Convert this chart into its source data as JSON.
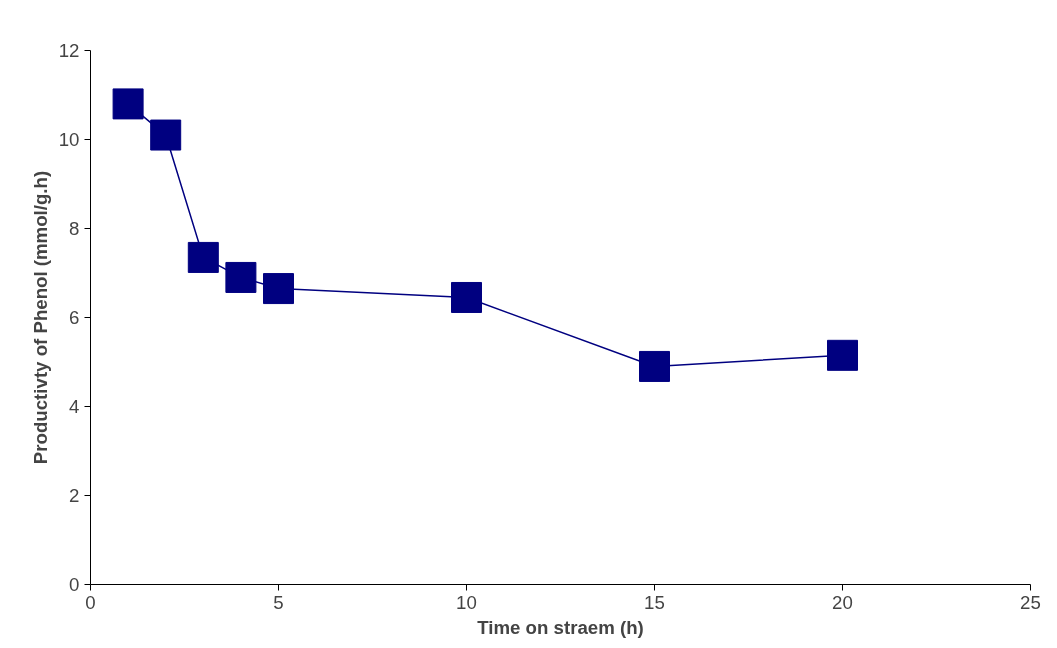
{
  "chart_data": {
    "type": "line",
    "xlabel": "Time on straem (h)",
    "ylabel": "Productivty of Phenol (mmol/g.h)",
    "x": [
      1,
      2,
      3,
      4,
      5,
      10,
      15,
      20
    ],
    "series": [
      {
        "color": "#000080",
        "values": [
          10.8,
          10.1,
          7.35,
          6.9,
          6.65,
          6.45,
          4.9,
          5.15
        ]
      }
    ],
    "xlim": [
      0,
      25
    ],
    "xticks": [
      0,
      5,
      10,
      15,
      20,
      25
    ],
    "ylim": [
      0,
      12
    ],
    "yticks": [
      0,
      2,
      4,
      6,
      8,
      10,
      12
    ],
    "grid": false,
    "marker": "square",
    "line_style": "solid"
  }
}
